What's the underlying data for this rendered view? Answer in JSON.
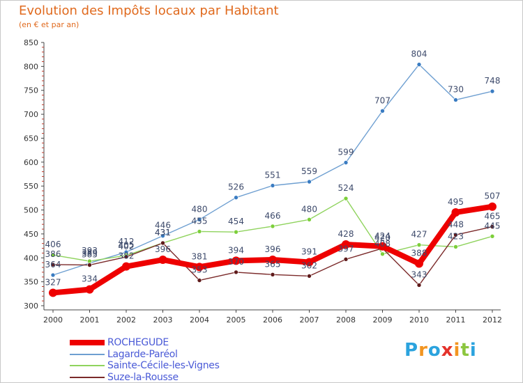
{
  "title": "Evolution des Impôts locaux par Habitant",
  "subtitle": "(en € et par an)",
  "logo": {
    "text": "Proxiti",
    "letters": [
      "P",
      "r",
      "o",
      "x",
      "i",
      "t",
      "i"
    ],
    "colors": [
      "#2ba3de",
      "#f29521",
      "#2ba3de",
      "#e4322b",
      "#f29521",
      "#8cc63f",
      "#2ba3de"
    ]
  },
  "chart_data": {
    "type": "line",
    "title": "Evolution des Impôts locaux par Habitant",
    "subtitle": "(en € et par an)",
    "xlabel": "",
    "ylabel": "",
    "ylim": [
      300,
      850
    ],
    "yticks": [
      "300",
      "350",
      "400",
      "450",
      "500",
      "550",
      "600",
      "650",
      "700",
      "750",
      "800",
      "850"
    ],
    "x": [
      "2000",
      "2001",
      "2002",
      "2003",
      "2004",
      "2005",
      "2006",
      "2007",
      "2008",
      "2009",
      "2010",
      "2011",
      "2012"
    ],
    "grid": false,
    "legend_position": "bottom-left",
    "series": [
      {
        "name": "Lagarde-Paréol",
        "color": "#6e9fd1",
        "marker": "#3a7cc2",
        "values": [
          364,
          389,
          412,
          446,
          480,
          526,
          551,
          559,
          599,
          707,
          804,
          730,
          748
        ],
        "labels": [
          "364",
          "389",
          "412",
          "446",
          "480",
          "526",
          "551",
          "559",
          "599",
          "707",
          "804",
          "730",
          "748"
        ]
      },
      {
        "name": "Sainte-Cécile-les-Vignes",
        "color": "#8fd35d",
        "marker": "#7ccf3a",
        "values": [
          406,
          393,
          405,
          431,
          455,
          454,
          466,
          480,
          524,
          408,
          427,
          423,
          445
        ],
        "labels": [
          "406",
          "393",
          "405",
          "431",
          "455",
          "454",
          "466",
          "480",
          "524",
          "408",
          "427",
          "423",
          "445"
        ]
      },
      {
        "name": "Suze-la-Rousse",
        "color": "#7b2a2a",
        "marker": "#5e1a1a",
        "values": [
          386,
          385,
          402,
          431,
          353,
          370,
          365,
          362,
          397,
          420,
          343,
          448,
          465
        ],
        "labels": [
          "386",
          "385",
          "402",
          "431",
          "353",
          "370",
          "365",
          "362",
          "397",
          "420",
          "343",
          "448",
          "465"
        ]
      },
      {
        "name": "ROCHEGUDE",
        "color": "#ee0000",
        "marker": "#ee0000",
        "values": [
          327,
          334,
          382,
          396,
          381,
          394,
          396,
          391,
          428,
          424,
          388,
          495,
          507
        ],
        "labels": [
          "327",
          "334",
          "382",
          "396",
          "381",
          "394",
          "396",
          "391",
          "428",
          "424",
          "388",
          "495",
          "507"
        ]
      }
    ]
  },
  "legend": [
    {
      "name": "ROCHEGUDE",
      "color": "#ee0000",
      "thickness": 8
    },
    {
      "name": "Lagarde-Paréol",
      "color": "#6e9fd1",
      "thickness": 2
    },
    {
      "name": "Sainte-Cécile-les-Vignes",
      "color": "#8fd35d",
      "thickness": 2
    },
    {
      "name": "Suze-la-Rousse",
      "color": "#7b2a2a",
      "thickness": 2
    }
  ]
}
